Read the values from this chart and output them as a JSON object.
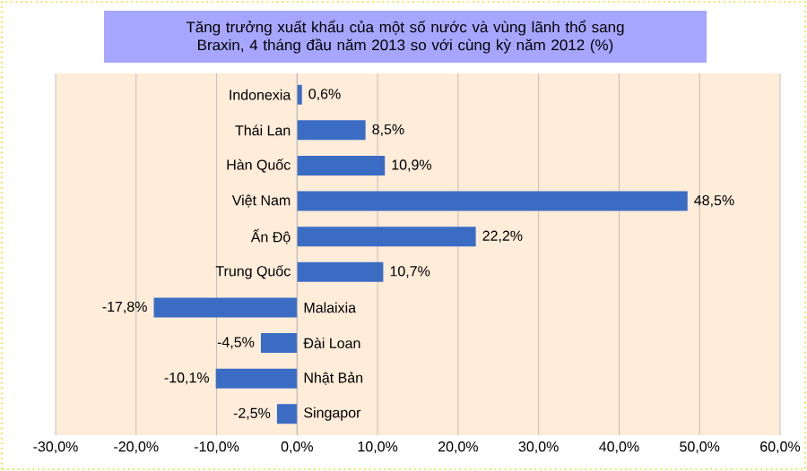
{
  "chart_data": {
    "type": "bar",
    "orientation": "horizontal",
    "title": "Tăng trưởng xuất khẩu của một số nước và vùng lãnh thổ sang Braxin, 4 tháng đầu năm 2013 so với cùng kỳ năm 2012 (%)",
    "categories": [
      "Indonexia",
      "Thái Lan",
      "Hàn Quốc",
      "Việt Nam",
      "Ấn Độ",
      "Trung Quốc",
      "Malaixia",
      "Đài Loan",
      "Nhật Bản",
      "Singapor"
    ],
    "values": [
      0.6,
      8.5,
      10.9,
      48.5,
      22.2,
      10.7,
      -17.8,
      -4.5,
      -10.1,
      -2.5
    ],
    "value_labels": [
      "0,6%",
      "8,5%",
      "10,9%",
      "48,5%",
      "22,2%",
      "10,7%",
      "-17,8%",
      "-4,5%",
      "-10,1%",
      "-2,5%"
    ],
    "color": "#3a6cc4",
    "xlim": [
      -30,
      60
    ],
    "xticks": [
      {
        "value": -30,
        "label": "-30,0%"
      },
      {
        "value": -20,
        "label": "-20,0%"
      },
      {
        "value": -10,
        "label": "-10,0%"
      },
      {
        "value": 0,
        "label": "0,0%"
      },
      {
        "value": 10,
        "label": "10,0%"
      },
      {
        "value": 20,
        "label": "20,0%"
      },
      {
        "value": 30,
        "label": "30,0%"
      },
      {
        "value": 40,
        "label": "40,0%"
      },
      {
        "value": 50,
        "label": "50,0%"
      },
      {
        "value": 60,
        "label": "60,0%"
      }
    ],
    "grid": "x"
  }
}
